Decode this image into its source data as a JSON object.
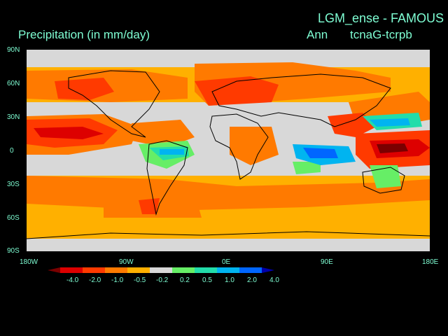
{
  "header": {
    "title_right": "LGM_ense - FAMOUS",
    "title_left": "Precipitation (in mm/day)",
    "period": "Ann",
    "experiment": "tcnaG-tcrpb"
  },
  "axes": {
    "y_ticks": [
      "90N",
      "60N",
      "30N",
      "0",
      "30S",
      "60S",
      "90S"
    ],
    "x_ticks": [
      "180W",
      "90W",
      "0E",
      "90E",
      "180E"
    ]
  },
  "colorbar": {
    "labels": [
      "-4.0",
      "-2.0",
      "-1.0",
      "-0.5",
      "-0.2",
      "0.2",
      "0.5",
      "1.0",
      "2.0",
      "4.0"
    ],
    "colors": [
      "#7a0000",
      "#dd0000",
      "#ff3a00",
      "#ff7a00",
      "#ffb000",
      "#d8d8d8",
      "#66ee66",
      "#22ddaa",
      "#00b4f0",
      "#0066ff",
      "#0000aa"
    ]
  },
  "map_colors": {
    "ocean_background": "#d8d8d8",
    "coastline": "#000000"
  }
}
